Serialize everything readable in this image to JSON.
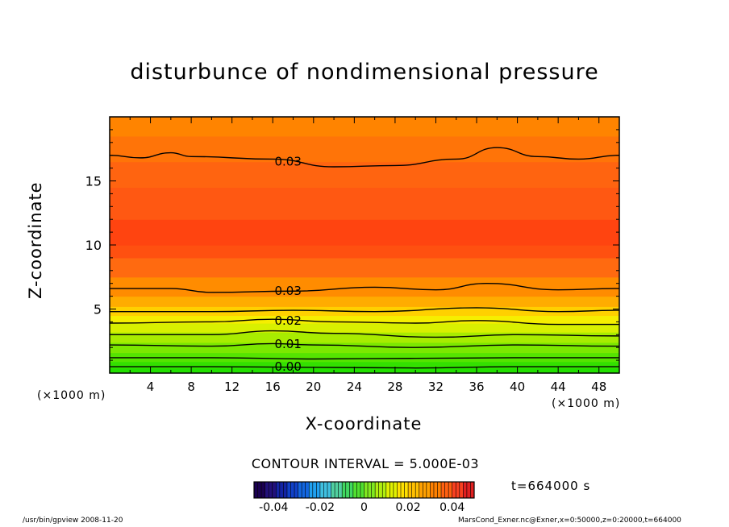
{
  "chart_data": {
    "type": "contour",
    "title": "disturbunce of nondimensional pressure",
    "xlabel": "X-coordinate",
    "ylabel": "Z-coordinate",
    "x_unit_left": "(×1000 m)",
    "x_unit_right": "(×1000 m)",
    "xlim": [
      0,
      50
    ],
    "ylim": [
      0,
      20
    ],
    "x_ticks": [
      4,
      8,
      12,
      16,
      20,
      24,
      28,
      32,
      36,
      40,
      44,
      48
    ],
    "y_ticks": [
      5,
      10,
      15
    ],
    "contour_interval_text": "CONTOUR INTERVAL = 5.000E-03",
    "contours": [
      {
        "label": "0.00",
        "points": [
          [
            0,
            0.5
          ],
          [
            10,
            0.5
          ],
          [
            20,
            0.45
          ],
          [
            30,
            0.4
          ],
          [
            40,
            0.5
          ],
          [
            50,
            0.5
          ]
        ]
      },
      {
        "label": "",
        "points": [
          [
            0,
            1.2
          ],
          [
            10,
            1.2
          ],
          [
            20,
            1.1
          ],
          [
            30,
            1.15
          ],
          [
            40,
            1.2
          ],
          [
            50,
            1.2
          ]
        ]
      },
      {
        "label": "0.01",
        "points": [
          [
            0,
            2.2
          ],
          [
            10,
            2.1
          ],
          [
            16,
            2.3
          ],
          [
            20,
            2.2
          ],
          [
            30,
            2.0
          ],
          [
            40,
            2.2
          ],
          [
            50,
            2.1
          ]
        ]
      },
      {
        "label": "",
        "points": [
          [
            0,
            3.0
          ],
          [
            10,
            3.0
          ],
          [
            16,
            3.3
          ],
          [
            22,
            3.1
          ],
          [
            32,
            2.8
          ],
          [
            40,
            3.0
          ],
          [
            50,
            2.9
          ]
        ]
      },
      {
        "label": "0.02",
        "points": [
          [
            0,
            3.9
          ],
          [
            10,
            4.0
          ],
          [
            16,
            4.2
          ],
          [
            22,
            4.0
          ],
          [
            30,
            3.9
          ],
          [
            36,
            4.1
          ],
          [
            44,
            3.8
          ],
          [
            50,
            3.8
          ]
        ]
      },
      {
        "label": "",
        "points": [
          [
            0,
            4.8
          ],
          [
            10,
            4.8
          ],
          [
            18,
            4.9
          ],
          [
            26,
            4.8
          ],
          [
            36,
            5.1
          ],
          [
            44,
            4.8
          ],
          [
            50,
            4.9
          ]
        ]
      },
      {
        "label": "0.03",
        "points": [
          [
            0,
            6.6
          ],
          [
            6,
            6.6
          ],
          [
            10,
            6.3
          ],
          [
            18,
            6.4
          ],
          [
            26,
            6.7
          ],
          [
            32,
            6.5
          ],
          [
            37,
            7.0
          ],
          [
            44,
            6.5
          ],
          [
            50,
            6.6
          ]
        ]
      },
      {
        "label": "0.03",
        "points": [
          [
            0,
            17.0
          ],
          [
            3,
            16.8
          ],
          [
            6,
            17.2
          ],
          [
            8,
            16.9
          ],
          [
            16,
            16.7
          ],
          [
            22,
            16.1
          ],
          [
            28,
            16.2
          ],
          [
            34,
            16.7
          ],
          [
            38,
            17.6
          ],
          [
            42,
            16.9
          ],
          [
            46,
            16.7
          ],
          [
            50,
            17.0
          ]
        ]
      }
    ],
    "label_positions": [
      {
        "text": "0.00",
        "x": 17.5,
        "y": 0.5
      },
      {
        "text": "0.01",
        "x": 17.5,
        "y": 2.25
      },
      {
        "text": "0.02",
        "x": 17.5,
        "y": 4.1
      },
      {
        "text": "0.03",
        "x": 17.5,
        "y": 6.4
      },
      {
        "text": "0.03",
        "x": 17.5,
        "y": 16.5
      }
    ],
    "colorbar": {
      "ticks": [
        "-0.04",
        "-0.02",
        "0",
        "0.02",
        "0.04"
      ],
      "range": [
        -0.05,
        0.05
      ]
    },
    "time_text": "t=664000 s"
  },
  "footer": {
    "left": "/usr/bin/gpview 2008-11-20",
    "right": "MarsCond_Exner.nc@Exner,x=0:50000,z=0:20000,t=664000"
  }
}
